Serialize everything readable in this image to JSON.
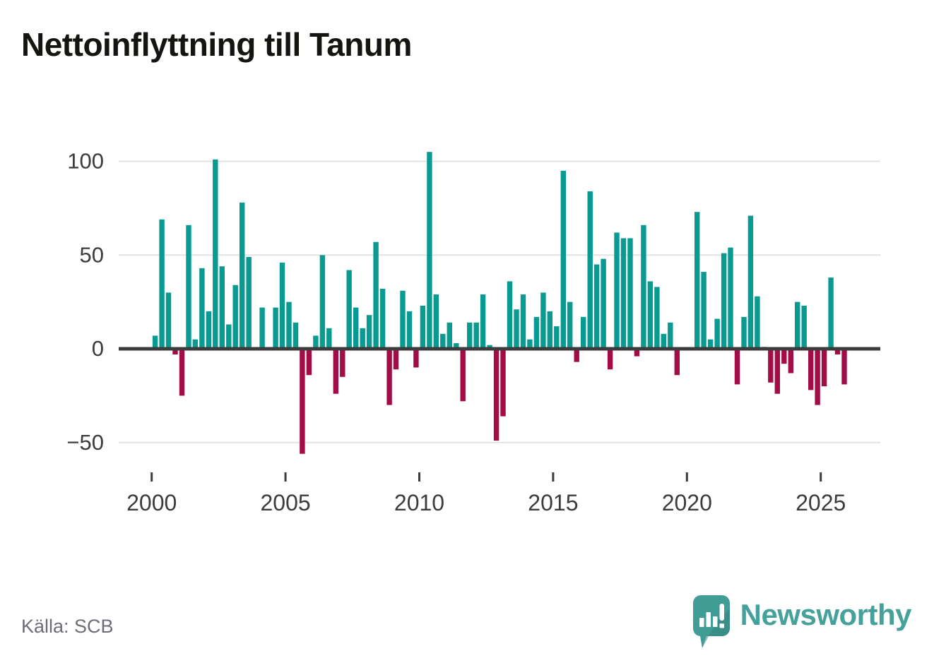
{
  "title": {
    "text": "Nettoinflyttning till Tanum"
  },
  "source": {
    "text": "Källa: SCB"
  },
  "logo": {
    "brand": "Newsworthy"
  },
  "colors": {
    "positive_bar": "#099a92",
    "negative_bar": "#a30c45",
    "grid_line": "#e3e3e3",
    "zero_line": "#3c3c3c",
    "axis_text": "#3c3c3c",
    "title_text": "#141411",
    "source_text": "#6d6d77",
    "logo_teal": "#3f9d96",
    "logo_teal_dark": "#35847e",
    "logo_text": "#46a19b"
  },
  "y_axis": {
    "tick_labels": [
      "100",
      "50",
      "0",
      "−50"
    ],
    "tick_values": [
      100,
      50,
      0,
      -50
    ]
  },
  "x_axis": {
    "tick_labels": [
      "2000",
      "2005",
      "2010",
      "2015",
      "2020",
      "2025"
    ],
    "tick_years": [
      2000,
      2005,
      2010,
      2015,
      2020,
      2025
    ]
  },
  "chart_data": {
    "type": "bar",
    "title": "Nettoinflyttning till Tanum",
    "xlabel": "",
    "ylabel": "",
    "ylim": [
      -60,
      110
    ],
    "grid": "horizontal",
    "legend": "none",
    "frequency": "quarterly",
    "quarters_per_year": 4,
    "start_year": 2000,
    "series": [
      {
        "year": 2000,
        "values": [
          7,
          69,
          30,
          -3
        ]
      },
      {
        "year": 2001,
        "values": [
          -25,
          66,
          5,
          43
        ]
      },
      {
        "year": 2002,
        "values": [
          20,
          101,
          44,
          13
        ]
      },
      {
        "year": 2003,
        "values": [
          34,
          78,
          49,
          0
        ]
      },
      {
        "year": 2004,
        "values": [
          22,
          0,
          22,
          46
        ]
      },
      {
        "year": 2005,
        "values": [
          25,
          14,
          -56,
          -14
        ]
      },
      {
        "year": 2006,
        "values": [
          7,
          50,
          11,
          -24
        ]
      },
      {
        "year": 2007,
        "values": [
          -15,
          42,
          22,
          11
        ]
      },
      {
        "year": 2008,
        "values": [
          18,
          57,
          32,
          -30
        ]
      },
      {
        "year": 2009,
        "values": [
          -11,
          31,
          20,
          -10
        ]
      },
      {
        "year": 2010,
        "values": [
          23,
          105,
          29,
          8
        ]
      },
      {
        "year": 2011,
        "values": [
          14,
          3,
          -28,
          14
        ]
      },
      {
        "year": 2012,
        "values": [
          14,
          29,
          2,
          -49
        ]
      },
      {
        "year": 2013,
        "values": [
          -36,
          36,
          21,
          29
        ]
      },
      {
        "year": 2014,
        "values": [
          5,
          17,
          30,
          20
        ]
      },
      {
        "year": 2015,
        "values": [
          12,
          95,
          25,
          -7
        ]
      },
      {
        "year": 2016,
        "values": [
          17,
          84,
          45,
          48
        ]
      },
      {
        "year": 2017,
        "values": [
          -11,
          62,
          59,
          59
        ]
      },
      {
        "year": 2018,
        "values": [
          -4,
          66,
          36,
          33
        ]
      },
      {
        "year": 2019,
        "values": [
          8,
          14,
          -14,
          0
        ]
      },
      {
        "year": 2020,
        "values": [
          0,
          73,
          41,
          5
        ]
      },
      {
        "year": 2021,
        "values": [
          16,
          51,
          54,
          -19
        ]
      },
      {
        "year": 2022,
        "values": [
          17,
          71,
          28,
          1
        ]
      },
      {
        "year": 2023,
        "values": [
          -18,
          -24,
          -8,
          -13
        ]
      },
      {
        "year": 2024,
        "values": [
          25,
          23,
          -22,
          -30
        ]
      },
      {
        "year": 2025,
        "values": [
          -20,
          38,
          -3,
          -19
        ]
      }
    ]
  }
}
